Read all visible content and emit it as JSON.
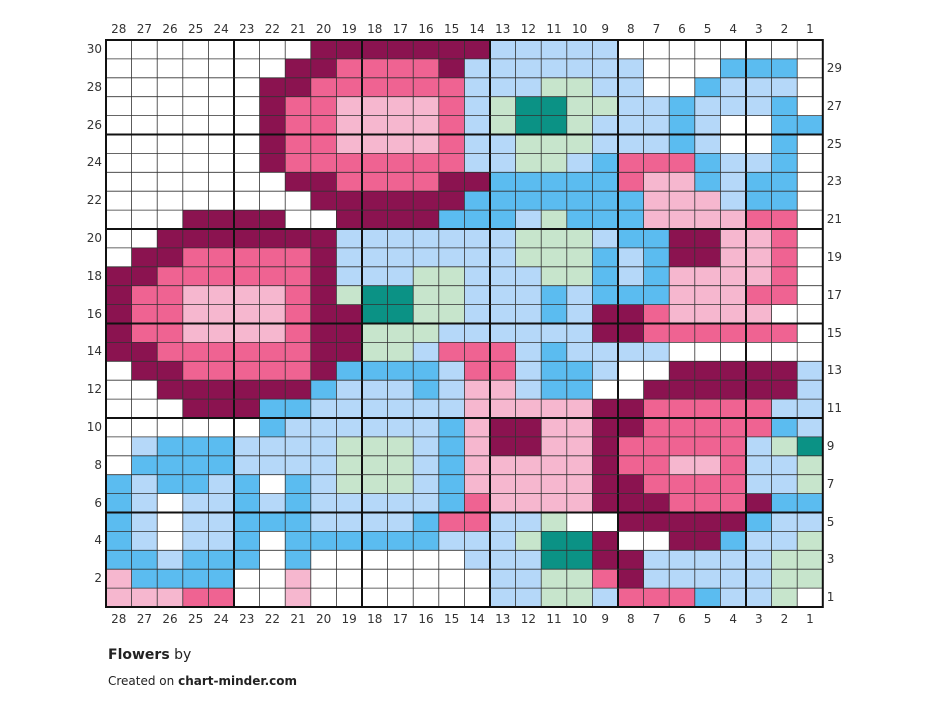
{
  "pattern": {
    "title": "Flowers",
    "by_label": "by",
    "credit_prefix": "Created on",
    "credit_site": "chart-minder.com"
  },
  "palette": {
    "W": "#ffffff",
    "M": "#8b1350",
    "P": "#ef6392",
    "L": "#f6b7cf",
    "B": "#5bbcf0",
    "S": "#b5d8f9",
    "G": "#c7e5cc",
    "T": "#0b9285"
  },
  "columns": [
    "28",
    "27",
    "26",
    "25",
    "24",
    "23",
    "22",
    "21",
    "20",
    "19",
    "18",
    "17",
    "16",
    "15",
    "14",
    "13",
    "12",
    "11",
    "10",
    "9",
    "8",
    "7",
    "6",
    "5",
    "4",
    "3",
    "2",
    "1"
  ],
  "rows_left": [
    "30",
    "28",
    "26",
    "24",
    "22",
    "20",
    "18",
    "16",
    "14",
    "12",
    "10",
    "8",
    "6",
    "4",
    "2"
  ],
  "rows_right": [
    "29",
    "27",
    "25",
    "23",
    "21",
    "19",
    "17",
    "15",
    "13",
    "11",
    "9",
    "7",
    "5",
    "3",
    "1"
  ],
  "chart_data": {
    "type": "table",
    "cols": 28,
    "rows": 30,
    "column_order": "right-to-left",
    "grid_rows_top_to_bottom": [
      "WWWWWWWWMMMMMMMSSSSSWWWWWWWW",
      "WWWWWWWMMPPPPMSSSSSSSWWWBBBW",
      "WWWWWWMMPPPPPPSSSGGSSWWBSSSW",
      "WWWWWWMPPLLLLPSGTTGGSSBSSSBW",
      "WWWWWWMPPLLLLPSGTTGSSSBSWWBB",
      "WWWWWWMPPLLLLPSSGGGSSSBSWWBW",
      "WWWWWWMPPPPPPPSSGGSBPPPBSSBW",
      "WWWWWWWMMPPPPMMBBBBBPLLBSBBW",
      "WWWWWWWWMMMMMMBBBBBBBLLLSBBW",
      "WWWMMMMWWMMMMBBBSGBBBLLLLPPW",
      "WWMMMMMMMSSSSSSSGGGSBBMMLLPW",
      "WMMPPPPPMSSSSSSSGGGBSBMMLLPW",
      "MMPPPPPPMSSSGGSSSGGBSBLLLLPW",
      "MPPLLLLPMGTTGGSSSBSBBBLLLPPW",
      "MPPLLLLPMMTTGGSSSBSMMPLLLLWW",
      "MPPLLLLPMMGGGSSSSSSMMPPPPPPW",
      "MMPPPPPPMMGGSPPPSBSSSSWWWWWW",
      "WMMPPPPPMBBBBSPPSBBSWWMMMMMS",
      "WWMMMMMMBSSSBSLLSBBWWMMMMMMS",
      "WWWMMMBBSSSSSSLLLLLMMPPPPPSS",
      "WWWWWWBSSSSSSBLMMLLMMPPPPPBS",
      "WSBBBSSSSGGGSBLMMLLMPPPPPSGT",
      "WBBBBSSSSGGGSBLLLLLMPPLLPSSG",
      "BSBBSBWBSGGGSBLLLLLMMPPPPSSG",
      "BSWSSBSBSSSSSBPLLLLMMMPPPMBB",
      "BSWSSBBBSSSSBPPSSGWWMMMMMBSS",
      "BSWSSBWBBBBBBSSSGTTMWWMMBSSG",
      "BBSBBBWBWWWWWWSSSTTMMSSSSSGG",
      "LBBBBWWLWWWWWWWSSGGPMSSSSSGG",
      "LLLPPWWLWWWWWWWSSGGSPPPBSSGW"
    ]
  }
}
